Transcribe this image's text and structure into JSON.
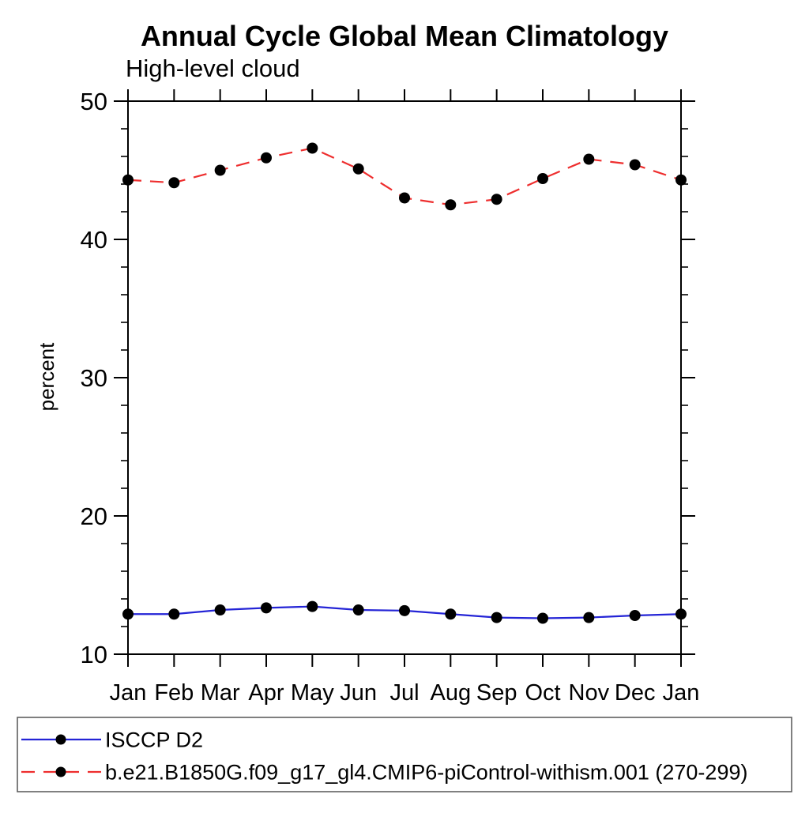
{
  "page": {
    "background": "#ffffff"
  },
  "chart_data": {
    "type": "line",
    "title": "Annual Cycle Global Mean Climatology",
    "subtitle": "High-level cloud",
    "xlabel": "",
    "ylabel": "percent",
    "categories": [
      "Jan",
      "Feb",
      "Mar",
      "Apr",
      "May",
      "Jun",
      "Jul",
      "Aug",
      "Sep",
      "Oct",
      "Nov",
      "Dec",
      "Jan"
    ],
    "ylim": [
      10,
      50
    ],
    "yticks_major": [
      10,
      20,
      30,
      40,
      50
    ],
    "ytick_minor_step": 2,
    "grid": "off",
    "legend_position": "bottom-left-box",
    "frame_color": "#000000",
    "marker": "filled-circle",
    "marker_color": "#000000",
    "series": [
      {
        "name": "ISCCP D2",
        "color": "#2424d6",
        "style": "solid",
        "values": [
          12.9,
          12.9,
          13.2,
          13.35,
          13.45,
          13.2,
          13.15,
          12.9,
          12.65,
          12.6,
          12.65,
          12.8,
          12.9
        ]
      },
      {
        "name": "b.e21.B1850G.f09_g17_gl4.CMIP6-piControl-withism.001 (270-299)",
        "color": "#ee2e2e",
        "style": "dashed",
        "values": [
          44.3,
          44.1,
          45.0,
          45.9,
          46.6,
          45.1,
          43.0,
          42.5,
          42.9,
          44.4,
          45.8,
          45.4,
          44.3
        ]
      }
    ]
  }
}
